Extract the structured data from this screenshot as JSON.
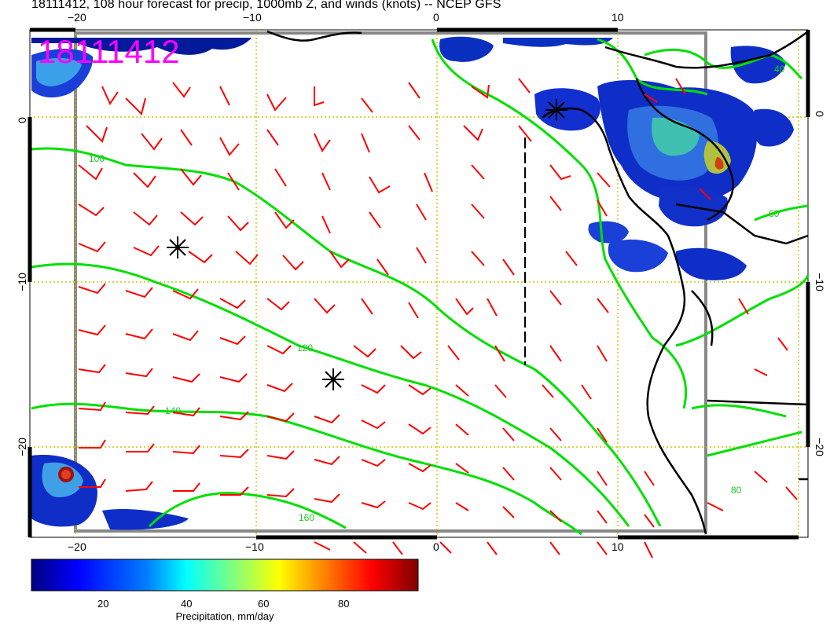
{
  "title": "18111412, 108 hour forecast for precip, 1000mb Z, and winds (knots) -- NCEP GFS",
  "date_stamp": "18111412",
  "axes": {
    "lon_ticks": [
      "−20",
      "−10",
      "0",
      "10"
    ],
    "lat_ticks": [
      "0",
      "−10",
      "−20"
    ],
    "lat_ticks_right": [
      "0",
      "−10",
      "−20"
    ]
  },
  "contour_labels": [
    "100",
    "120",
    "140",
    "160",
    "40",
    "60",
    "80"
  ],
  "colorbar": {
    "label": "Precipitation, mm/day",
    "ticks": [
      "20",
      "40",
      "60",
      "80"
    ],
    "range": [
      0,
      100
    ],
    "colors": [
      "#00007f",
      "#0000ff",
      "#007fff",
      "#00ffff",
      "#7fff7f",
      "#ffff00",
      "#ff7f00",
      "#ff0000",
      "#7f0000"
    ]
  },
  "colors": {
    "wind_barbs": "#ff0000",
    "geopotential_contours": "#00e000",
    "coastline": "#000000",
    "date_stamp": "#ff00ff",
    "grid": "#c8c800"
  }
}
